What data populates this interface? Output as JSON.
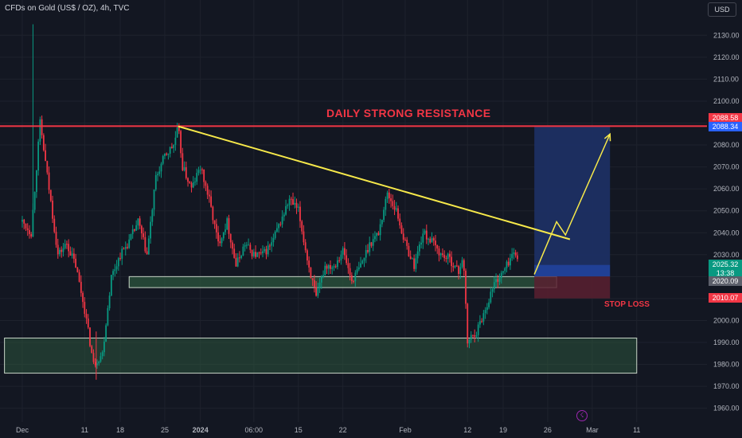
{
  "header": {
    "symbol_title": "CFDs on Gold (US$ / OZ), 4h, TVC",
    "currency_label": "USD"
  },
  "colors": {
    "background": "#131722",
    "grid": "#1e222d",
    "up_candle": "#089981",
    "down_candle": "#f23645",
    "resistance_line": "#f23645",
    "trendline": "#f7e94a",
    "support_zone_fill": "#2e5a3e",
    "target_zone_fill": "#1c2f63",
    "stop_zone_fill": "#5a2030",
    "axis_text": "#b2b5be"
  },
  "annotations": {
    "resistance_label": "DAILY STRONG RESISTANCE",
    "stop_loss_label": "STOP LOSS"
  },
  "price_tags": {
    "resistance_high": "2088.58",
    "target_price": "2088.34",
    "last_price": "2025.32",
    "countdown": "13:38",
    "entry_price": "2020.09",
    "stop_price": "2010.07"
  },
  "chart_data": {
    "type": "candlestick",
    "instrument": "CFDs on Gold (US$ / OZ)",
    "timeframe": "4h",
    "ylim": [
      1955,
      2140
    ],
    "y_ticks": [
      1960,
      1970,
      1980,
      1990,
      2000,
      2010,
      2020,
      2030,
      2040,
      2050,
      2060,
      2070,
      2080,
      2090,
      2100,
      2110,
      2120,
      2130
    ],
    "y_tick_labels": [
      "1960.00",
      "1970.00",
      "1980.00",
      "1990.00",
      "2000.00",
      "2010.00",
      "2020.00",
      "2030.00",
      "2040.00",
      "2050.00",
      "2060.00",
      "2070.00",
      "2080.00",
      "2090.00",
      "2100.00",
      "2110.00",
      "2120.00",
      "2130.00"
    ],
    "x_ticks": [
      "Dec",
      "11",
      "18",
      "25",
      "2024",
      "06:00",
      "15",
      "22",
      "Feb",
      "12",
      "19",
      "26",
      "Mar",
      "11"
    ],
    "x_tick_positions": [
      0,
      7,
      11,
      16,
      20,
      26,
      31,
      36,
      43,
      50,
      54,
      59,
      64,
      69
    ],
    "closes_by_day": [
      [
        0,
        2045
      ],
      [
        1,
        2040
      ],
      [
        2,
        2090
      ],
      [
        3,
        2060
      ],
      [
        4,
        2030
      ],
      [
        5,
        2035
      ],
      [
        6,
        2025
      ],
      [
        7,
        2005
      ],
      [
        8,
        1980
      ],
      [
        9,
        1985
      ],
      [
        10,
        2020
      ],
      [
        11,
        2030
      ],
      [
        12,
        2036
      ],
      [
        13,
        2045
      ],
      [
        14,
        2030
      ],
      [
        15,
        2065
      ],
      [
        16,
        2075
      ],
      [
        17,
        2080
      ],
      [
        17.5,
        2088
      ],
      [
        18,
        2070
      ],
      [
        19,
        2060
      ],
      [
        20,
        2070
      ],
      [
        21,
        2055
      ],
      [
        22,
        2035
      ],
      [
        23,
        2045
      ],
      [
        24,
        2025
      ],
      [
        25,
        2035
      ],
      [
        26,
        2030
      ],
      [
        27,
        2030
      ],
      [
        28,
        2035
      ],
      [
        29,
        2045
      ],
      [
        30,
        2055
      ],
      [
        31,
        2050
      ],
      [
        32,
        2028
      ],
      [
        33,
        2010
      ],
      [
        34,
        2025
      ],
      [
        35,
        2025
      ],
      [
        36,
        2032
      ],
      [
        37,
        2018
      ],
      [
        38,
        2025
      ],
      [
        39,
        2035
      ],
      [
        40,
        2040
      ],
      [
        41,
        2058
      ],
      [
        42,
        2050
      ],
      [
        43,
        2035
      ],
      [
        44,
        2025
      ],
      [
        45,
        2040
      ],
      [
        46,
        2036
      ],
      [
        47,
        2030
      ],
      [
        48,
        2028
      ],
      [
        49,
        2022
      ],
      [
        49.5,
        2030
      ],
      [
        50,
        1990
      ],
      [
        50.5,
        1993
      ],
      [
        51,
        1995
      ],
      [
        52,
        2005
      ],
      [
        53,
        2017
      ],
      [
        54,
        2022
      ],
      [
        55,
        2030
      ]
    ],
    "horizontal_lines": [
      {
        "name": "daily strong resistance",
        "price": 2088.58
      }
    ],
    "zones": [
      {
        "name": "support-zone-upper",
        "x_start": 12,
        "x_end": 60,
        "price_low": 2015,
        "price_high": 2020
      },
      {
        "name": "support-zone-lower",
        "x_start": -2,
        "x_end": 69,
        "price_low": 1976,
        "price_high": 1992
      },
      {
        "name": "target-zone",
        "x_start": 57.5,
        "x_end": 66,
        "price_low": 2020.09,
        "price_high": 2088.34
      },
      {
        "name": "stop-zone",
        "x_start": 57.5,
        "x_end": 66,
        "price_low": 2010.07,
        "price_high": 2020.09
      },
      {
        "name": "entry-zone",
        "x_start": 57.5,
        "x_end": 66,
        "price_low": 2020.09,
        "price_high": 2025.32
      }
    ],
    "trendline": {
      "from": [
        17.5,
        2088.5
      ],
      "to": [
        61.5,
        2037
      ]
    },
    "projection_path": [
      [
        57.5,
        2021
      ],
      [
        60,
        2045
      ],
      [
        61,
        2039
      ],
      [
        66,
        2085
      ]
    ]
  }
}
